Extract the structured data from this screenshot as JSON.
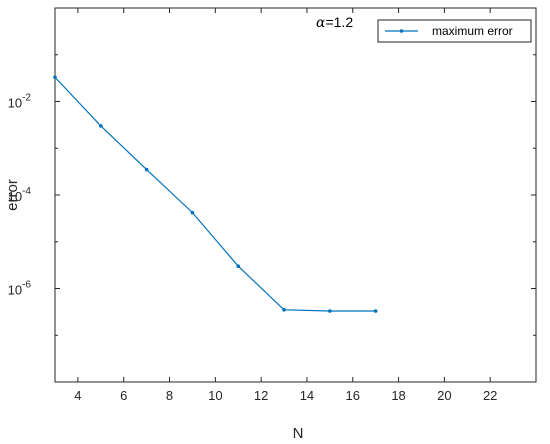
{
  "chart_data": {
    "type": "line",
    "title": "",
    "xlabel": "N",
    "ylabel": "error",
    "xlim": [
      3,
      24
    ],
    "ylim_log10": [
      -8,
      0
    ],
    "y_scale": "log",
    "grid": false,
    "legend_position": "top-right",
    "x_ticks": [
      4,
      6,
      8,
      10,
      12,
      14,
      16,
      18,
      20,
      22
    ],
    "x_tick_labels": [
      "4",
      "6",
      "8",
      "10",
      "12",
      "14",
      "16",
      "18",
      "20",
      "22"
    ],
    "y_tick_exponents": [
      -6,
      -4,
      -2
    ],
    "y_tick_base": "10",
    "annotation": {
      "symbol": "α",
      "text": "=1.2"
    },
    "colors": {
      "series": "#0072BD",
      "axis": "#262626"
    },
    "series": [
      {
        "name": "maximum error",
        "x": [
          3,
          5,
          7,
          9,
          11,
          13,
          15,
          17
        ],
        "y": [
          0.033,
          0.003,
          0.00035,
          4.2e-05,
          3e-06,
          3.5e-07,
          3.3e-07,
          3.3e-07
        ]
      }
    ]
  }
}
